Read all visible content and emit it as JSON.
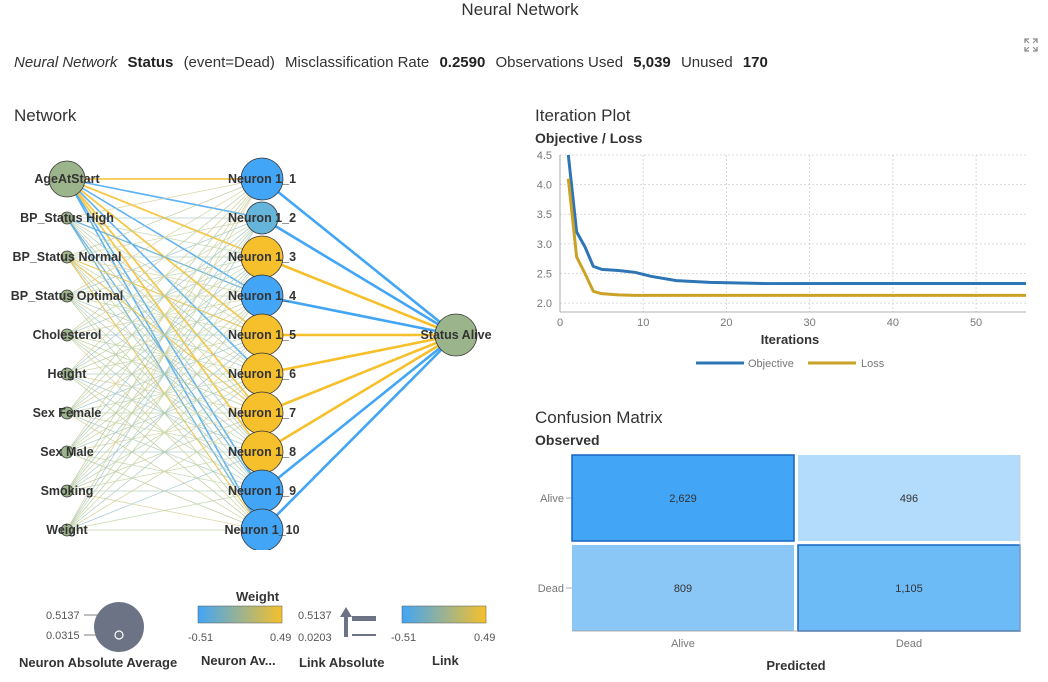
{
  "page": {
    "title": "Neural Network"
  },
  "summary": {
    "model_name": "Neural Network",
    "target_label": "Status",
    "event_label": "(event=Dead)",
    "misclass_label": "Misclassification Rate",
    "misclass_value": "0.2590",
    "obs_used_label": "Observations Used",
    "obs_used_value": "5,039",
    "unused_label": "Unused",
    "unused_value": "170"
  },
  "icons": {
    "expand": "expand-icon"
  },
  "network": {
    "title": "Network",
    "inputs": [
      "AgeAtStart",
      "BP_Status High",
      "BP_Status Normal",
      "BP_Status Optimal",
      "Cholesterol",
      "Height",
      "Sex Female",
      "Sex Male",
      "Smoking",
      "Weight"
    ],
    "input_sizes": [
      "large",
      "small",
      "small",
      "small",
      "small",
      "small",
      "small",
      "small",
      "small",
      "small"
    ],
    "hidden": [
      "Neuron 1_1",
      "Neuron 1_2",
      "Neuron 1_3",
      "Neuron 1_4",
      "Neuron 1_5",
      "Neuron 1_6",
      "Neuron 1_7",
      "Neuron 1_8",
      "Neuron 1_9",
      "Neuron 1_10"
    ],
    "hidden_colors": [
      "#42a5f5",
      "#64b5d9",
      "#f5c02c",
      "#42a5f5",
      "#f5c02c",
      "#f5c02c",
      "#f5c02c",
      "#f5c02c",
      "#42a5f5",
      "#42a5f5"
    ],
    "hidden_sizes": [
      "large",
      "medium",
      "large",
      "large",
      "large",
      "large",
      "large",
      "large",
      "large",
      "large"
    ],
    "output": "Status Alive",
    "output_link_colors": [
      "#42a5f5",
      "#42a5f5",
      "#f5c02c",
      "#42a5f5",
      "#f5c02c",
      "#f5c02c",
      "#f5c02c",
      "#f5c02c",
      "#42a5f5",
      "#42a5f5"
    ],
    "input_color": "#9cb48c"
  },
  "legends": {
    "neuron_abs_avg": {
      "label": "Neuron Absolute Average",
      "max": "0.5137",
      "min": "0.0315"
    },
    "neuron_avg": {
      "title": "Weight",
      "label": "Neuron Av...",
      "min": "-0.51",
      "max": "0.49"
    },
    "link_abs": {
      "label": "Link Absolute",
      "max": "0.5137",
      "min": "0.0203"
    },
    "link": {
      "label": "Link",
      "min": "-0.51",
      "max": "0.49"
    },
    "gradient_neg_color": "#42a5f5",
    "gradient_pos_color": "#f5c02c"
  },
  "iteration_plot": {
    "title": "Iteration Plot",
    "subtitle": "Objective / Loss",
    "legend_objective": "Objective",
    "legend_loss": "Loss"
  },
  "chart_data": {
    "type": "line",
    "xlabel": "Iterations",
    "ylabel": "Objective / Loss",
    "xlim": [
      0,
      56
    ],
    "ylim": [
      1.85,
      4.5
    ],
    "x_ticks": [
      "0",
      "10",
      "20",
      "30",
      "40",
      "50"
    ],
    "y_ticks": [
      "2.0",
      "2.5",
      "3.0",
      "3.5",
      "4.0",
      "4.5"
    ],
    "grid": true,
    "legend_position": "bottom",
    "series": [
      {
        "name": "Objective",
        "color": "#2e75b6",
        "x": [
          1,
          2,
          3,
          4,
          5,
          7,
          9,
          11,
          14,
          18,
          25,
          35,
          45,
          56
        ],
        "y": [
          4.5,
          3.2,
          2.95,
          2.62,
          2.57,
          2.55,
          2.52,
          2.45,
          2.38,
          2.35,
          2.33,
          2.33,
          2.33,
          2.33
        ]
      },
      {
        "name": "Loss",
        "color": "#c9a227",
        "x": [
          1,
          2,
          3,
          4,
          5,
          7,
          9,
          12,
          20,
          30,
          40,
          56
        ],
        "y": [
          4.1,
          2.78,
          2.5,
          2.2,
          2.16,
          2.14,
          2.13,
          2.13,
          2.13,
          2.13,
          2.13,
          2.13
        ]
      }
    ]
  },
  "confusion_matrix": {
    "title": "Confusion Matrix",
    "observed_label": "Observed",
    "predicted_label": "Predicted",
    "rows": [
      "Alive",
      "Dead"
    ],
    "cols": [
      "Alive",
      "Dead"
    ],
    "cells": [
      [
        "2,629",
        "496"
      ],
      [
        "809",
        "1,105"
      ]
    ],
    "cell_colors": [
      [
        "#42a5f5",
        "#b3dbfc"
      ],
      [
        "#8ac7f7",
        "#6cbaf6"
      ]
    ],
    "cell_borders": [
      [
        "#1565c0",
        "none"
      ],
      [
        "none",
        "#1565c0"
      ]
    ]
  }
}
